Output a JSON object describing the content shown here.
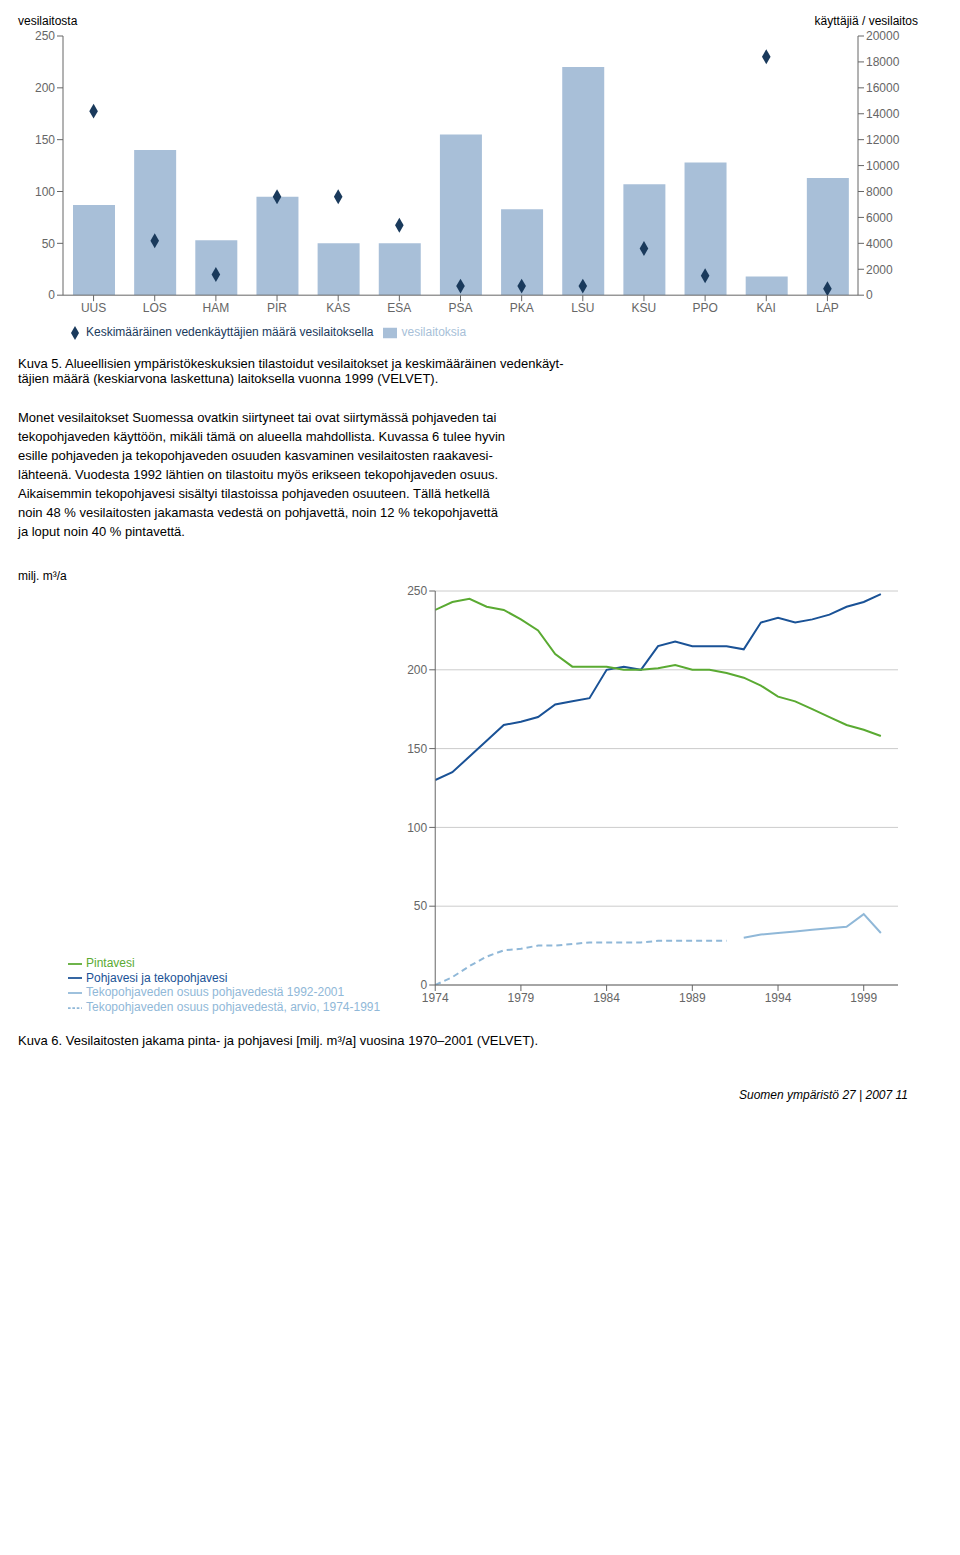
{
  "chart_data": [
    {
      "type": "bar",
      "categories": [
        "UUS",
        "LOS",
        "HAM",
        "PIR",
        "KAS",
        "ESA",
        "PSA",
        "PKA",
        "LSU",
        "KSU",
        "PPO",
        "KAI",
        "LAP"
      ],
      "series": [
        {
          "name": "vesilaitoksia",
          "type": "bar",
          "color": "#a8bfd8",
          "values": [
            87,
            140,
            53,
            95,
            50,
            50,
            155,
            83,
            220,
            107,
            128,
            18,
            113
          ]
        },
        {
          "name": "Keskimääräinen vedenkäyttäjien määrä vesilaitoksella",
          "type": "scatter",
          "marker": "diamond",
          "axis": "y2",
          "color": "#1a3a5c",
          "values": [
            14200,
            4200,
            1600,
            7600,
            7600,
            5400,
            700,
            700,
            700,
            3600,
            1500,
            18400,
            500
          ]
        }
      ],
      "ylabel": "vesilaitosta",
      "y2label": "käyttäjiä / vesilaitos",
      "ylim": [
        0,
        250
      ],
      "yticks": [
        0,
        50,
        100,
        150,
        200,
        250
      ],
      "y2lim": [
        0,
        20000
      ],
      "y2ticks": [
        0,
        2000,
        4000,
        6000,
        8000,
        10000,
        12000,
        14000,
        16000,
        18000,
        20000
      ],
      "grid": false,
      "legend": "bottom",
      "annotations": [
        "Kuva 5. Alueellisien ympäristökeskuksien tilastoidut vesilaitokset ja keskimääräinen vedenkäyt-",
        "täjien määrä (keskiarvona laskettuna) laitoksella vuonna 1999 (VELVET)."
      ]
    },
    {
      "type": "line",
      "x": [
        1974,
        1975,
        1976,
        1977,
        1978,
        1979,
        1980,
        1981,
        1982,
        1983,
        1984,
        1985,
        1986,
        1987,
        1988,
        1989,
        1990,
        1991,
        1992,
        1993,
        1994,
        1995,
        1996,
        1997,
        1998,
        1999,
        2000
      ],
      "series": [
        {
          "name": "Pohjavesi ja tekopohjavesi",
          "color": "#1a5296",
          "line_style": "solid",
          "values": [
            130,
            135,
            145,
            155,
            165,
            167,
            170,
            178,
            180,
            182,
            200,
            202,
            200,
            215,
            218,
            215,
            215,
            215,
            213,
            230,
            233,
            230,
            232,
            235,
            240,
            243,
            248
          ]
        },
        {
          "name": "Tekopohjaveden osuus pohjavedestä, arvio, 1974-1991",
          "color": "#90b8d8",
          "line_style": "dashed",
          "values": [
            0,
            5,
            12,
            18,
            22,
            23,
            25,
            25,
            26,
            27,
            27,
            27,
            27,
            28,
            28,
            28,
            28,
            28,
            null,
            null,
            null,
            null,
            null,
            null,
            null,
            null,
            null
          ]
        },
        {
          "name": "Tekopohjaveden osuus pohjavedestä 1992-2001",
          "color": "#90b8d8",
          "line_style": "solid",
          "values": [
            null,
            null,
            null,
            null,
            null,
            null,
            null,
            null,
            null,
            null,
            null,
            null,
            null,
            null,
            null,
            null,
            null,
            null,
            30,
            32,
            33,
            34,
            35,
            36,
            37,
            45,
            33
          ]
        },
        {
          "name": "Pintavesi",
          "color": "#5aaa32",
          "line_style": "solid",
          "values": [
            238,
            243,
            245,
            240,
            238,
            232,
            225,
            210,
            202,
            202,
            202,
            200,
            200,
            201,
            203,
            200,
            200,
            198,
            195,
            190,
            183,
            180,
            175,
            170,
            165,
            162,
            158
          ]
        }
      ],
      "ylabel": "milj. m³/a",
      "xlim": [
        1974,
        2001
      ],
      "xticks": [
        1974,
        1979,
        1984,
        1989,
        1994,
        1999
      ],
      "ylim": [
        0,
        250
      ],
      "yticks": [
        0,
        50,
        100,
        150,
        200,
        250
      ],
      "grid": "y",
      "legend": "bottom",
      "annotations": [
        "Kuva 6. Vesilaitosten jakama pinta- ja pohjavesi [milj. m³/a] vuosina 1970–2001 (VELVET)."
      ]
    }
  ],
  "body_text": [
    "Monet vesilaitokset Suomessa ovatkin siirtyneet tai ovat siirtymässä pohjaveden tai",
    "tekopohjaveden käyttöön, mikäli tämä on alueella mahdollista. Kuvassa 6 tulee hyvin",
    "esille pohjaveden ja tekopohjaveden osuuden kasvaminen vesilaitosten raakavesi-",
    "lähteenä. Vuodesta 1992 lähtien on tilastoitu myös erikseen tekopohjaveden osuus.",
    "Aikaisemmin tekopohjavesi sisältyi tilastoissa pohjaveden osuuteen. Tällä hetkellä",
    "noin 48 % vesilaitosten jakamasta vedestä on pohjavettä, noin 12 % tekopohjavettä",
    "ja loput noin 40 % pintavettä."
  ],
  "footer": "Suomen ympäristö 27 | 2007    11"
}
